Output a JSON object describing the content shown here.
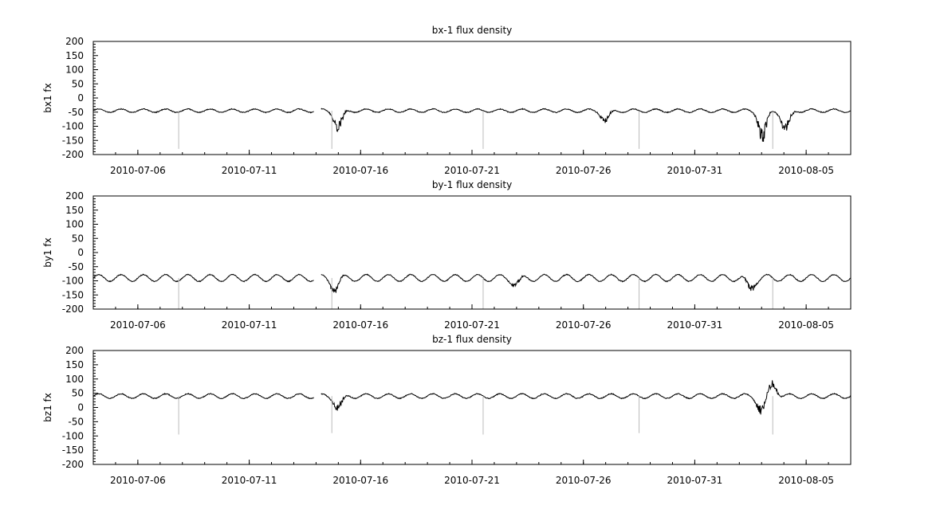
{
  "chart_data": [
    {
      "type": "line",
      "title": "bx-1 flux density",
      "ylabel": "bx1 fx",
      "xlim": [
        "2010-07-04",
        "2010-08-07"
      ],
      "ylim": [
        -200,
        200
      ],
      "yticks": [
        200,
        150,
        100,
        50,
        0,
        -50,
        -100,
        -150,
        -200
      ],
      "xticks": [
        "2010-07-06",
        "2010-07-11",
        "2010-07-16",
        "2010-07-21",
        "2010-07-26",
        "2010-07-31",
        "2010-08-05"
      ],
      "line_color": "#000000",
      "series": [
        {
          "baseline": -45,
          "daily_amplitude": 6,
          "gaps": [
            [
              "2010-07-13T22:00",
              "2010-07-14T05:00"
            ]
          ],
          "spikes": [
            {
              "x": "2010-07-07T20:00",
              "y": -180
            },
            {
              "x": "2010-07-14T17:00",
              "y": -180
            },
            {
              "x": "2010-07-21T12:00",
              "y": -180
            },
            {
              "x": "2010-07-28T12:00",
              "y": -180
            },
            {
              "x": "2010-08-03T12:00",
              "y": -180
            }
          ],
          "disturbances": [
            {
              "x": "2010-07-15T00:00",
              "min": -120
            },
            {
              "x": "2010-07-27T00:00",
              "min": -90
            },
            {
              "x": "2010-08-03T01:00",
              "min": -160
            },
            {
              "x": "2010-08-04T02:00",
              "min": -130
            }
          ]
        }
      ]
    },
    {
      "type": "line",
      "title": "by-1 flux density",
      "ylabel": "by1 fx",
      "xlim": [
        "2010-07-04",
        "2010-08-07"
      ],
      "ylim": [
        -200,
        200
      ],
      "yticks": [
        200,
        150,
        100,
        50,
        0,
        -50,
        -100,
        -150,
        -200
      ],
      "xticks": [
        "2010-07-06",
        "2010-07-11",
        "2010-07-16",
        "2010-07-21",
        "2010-07-26",
        "2010-07-31",
        "2010-08-05"
      ],
      "line_color": "#000000",
      "series": [
        {
          "baseline": -90,
          "daily_amplitude": 12,
          "gaps": [
            [
              "2010-07-13T22:00",
              "2010-07-14T05:00"
            ]
          ],
          "spikes": [
            {
              "x": "2010-07-07T20:00",
              "y": -200
            },
            {
              "x": "2010-07-14T17:00",
              "y": -200
            },
            {
              "x": "2010-07-21T12:00",
              "y": -200
            },
            {
              "x": "2010-07-28T12:00",
              "y": -200
            },
            {
              "x": "2010-08-03T12:00",
              "y": -200
            }
          ],
          "disturbances": [
            {
              "x": "2010-07-14T20:00",
              "min": -140
            },
            {
              "x": "2010-07-23T00:00",
              "min": -120
            },
            {
              "x": "2010-08-02T12:00",
              "min": -140
            }
          ]
        }
      ]
    },
    {
      "type": "line",
      "title": "bz-1 flux density",
      "ylabel": "bz1 fx",
      "xlim": [
        "2010-07-04",
        "2010-08-07"
      ],
      "ylim": [
        -200,
        200
      ],
      "yticks": [
        200,
        150,
        100,
        50,
        0,
        -50,
        -100,
        -150,
        -200
      ],
      "xticks": [
        "2010-07-06",
        "2010-07-11",
        "2010-07-16",
        "2010-07-21",
        "2010-07-26",
        "2010-07-31",
        "2010-08-05"
      ],
      "line_color": "#000000",
      "series": [
        {
          "baseline": 40,
          "daily_amplitude": 8,
          "gaps": [
            [
              "2010-07-13T22:00",
              "2010-07-14T05:00"
            ]
          ],
          "spikes": [
            {
              "x": "2010-07-07T20:00",
              "y": -95
            },
            {
              "x": "2010-07-14T17:00",
              "y": -90
            },
            {
              "x": "2010-07-21T12:00",
              "y": -95
            },
            {
              "x": "2010-07-28T12:00",
              "y": -90
            },
            {
              "x": "2010-08-03T12:00",
              "y": -95
            }
          ],
          "disturbances": [
            {
              "x": "2010-07-15T00:00",
              "min": -10
            },
            {
              "x": "2010-08-03T00:00",
              "min": -25
            },
            {
              "x": "2010-08-03T12:00",
              "max": 95
            }
          ]
        }
      ]
    }
  ]
}
